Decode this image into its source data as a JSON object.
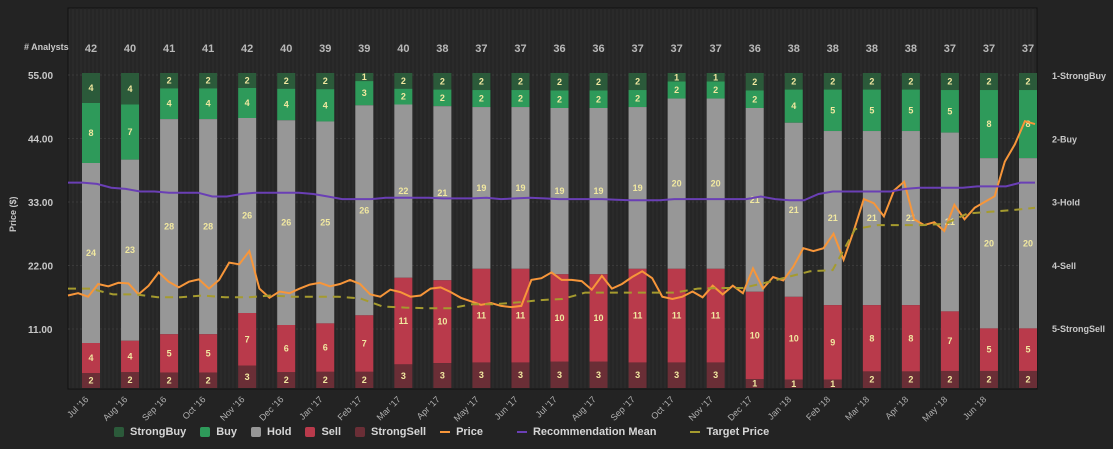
{
  "chart_data": {
    "type": "bar",
    "stacked": true,
    "title": "",
    "count_label": "# Analysts",
    "ylabel": "Price ($)",
    "ylim": [
      0,
      55
    ],
    "yticks": [
      "55.00",
      "44.00",
      "33.00",
      "22.00",
      "11.00"
    ],
    "ytick_values": [
      55,
      44,
      33,
      22,
      11
    ],
    "y2_labels": [
      "1-StrongBuy",
      "2-Buy",
      "3-Hold",
      "4-Sell",
      "5-StrongSell"
    ],
    "y2lim": [
      1,
      5
    ],
    "categories": [
      "Jul '16",
      "Aug '16",
      "Sep '16",
      "Oct '16",
      "Nov '16",
      "Dec '16",
      "Jan '17",
      "Feb '17",
      "Mar '17",
      "Apr '17",
      "May '17",
      "Jun '17",
      "Jul '17",
      "Aug '17",
      "Sep '17",
      "Oct '17",
      "Nov '17",
      "Dec '17",
      "Jan '18",
      "Feb '18",
      "Mar '18",
      "Apr '18",
      "May '18",
      "Jun '18",
      ""
    ],
    "analyst_counts": [
      42,
      40,
      41,
      41,
      42,
      40,
      39,
      39,
      40,
      38,
      37,
      37,
      36,
      36,
      37,
      37,
      37,
      36,
      38,
      38,
      38,
      38,
      37,
      37,
      37
    ],
    "series": [
      {
        "name": "StrongBuy",
        "color": "#2b5a3a",
        "values": [
          4,
          4,
          2,
          2,
          2,
          2,
          2,
          1,
          2,
          2,
          2,
          2,
          2,
          2,
          2,
          1,
          1,
          2,
          2,
          2,
          2,
          2,
          2,
          2,
          2
        ]
      },
      {
        "name": "Buy",
        "color": "#2e9a5a",
        "values": [
          8,
          7,
          4,
          4,
          4,
          4,
          4,
          3,
          2,
          2,
          2,
          2,
          2,
          2,
          2,
          2,
          2,
          2,
          4,
          5,
          5,
          5,
          5,
          8,
          8
        ]
      },
      {
        "name": "Hold",
        "color": "#979797",
        "values": [
          24,
          23,
          28,
          28,
          26,
          26,
          25,
          26,
          22,
          21,
          19,
          19,
          19,
          19,
          19,
          20,
          20,
          21,
          21,
          21,
          21,
          21,
          21,
          20,
          20
        ]
      },
      {
        "name": "Sell",
        "color": "#b93a4b",
        "values": [
          4,
          4,
          5,
          5,
          7,
          6,
          6,
          7,
          11,
          10,
          11,
          11,
          10,
          10,
          11,
          11,
          11,
          10,
          10,
          9,
          8,
          8,
          7,
          5,
          5
        ]
      },
      {
        "name": "StrongSell",
        "color": "#6a2e36",
        "values": [
          2,
          2,
          2,
          2,
          3,
          2,
          2,
          2,
          3,
          3,
          3,
          3,
          3,
          3,
          3,
          3,
          3,
          1,
          1,
          1,
          2,
          2,
          2,
          2,
          2
        ]
      }
    ],
    "lines": [
      {
        "name": "Price",
        "color": "#f7963a",
        "style": "solid",
        "values": [
          16.8,
          17.2,
          16.6,
          18.8,
          18.4,
          19.0,
          18.9,
          17.0,
          18.5,
          20.8,
          19.2,
          18.2,
          19.2,
          19.6,
          18.0,
          19.5,
          22.5,
          22.2,
          24.5,
          18.0,
          16.4,
          17.5,
          17.2,
          18.0,
          18.7,
          19.0,
          18.4,
          18.8,
          19.5,
          18.8,
          17.0,
          16.6,
          17.8,
          17.4,
          16.6,
          16.8,
          18.0,
          18.2,
          17.4,
          16.4,
          15.8,
          15.2,
          15.5,
          15.0,
          14.8,
          15.0,
          19.5,
          19.8,
          20.8,
          19.5,
          19.5,
          19.3,
          17.8,
          20.2,
          18.0,
          18.8,
          20.0,
          21.0,
          19.8,
          16.6,
          16.2,
          16.6,
          17.5,
          16.5,
          18.5,
          17.0,
          18.5,
          17.2,
          21.5,
          18.0,
          20.0,
          19.4,
          21.8,
          25.0,
          24.5,
          25.0,
          27.5,
          23.0,
          28.0,
          33.5,
          32.8,
          30.5,
          35.0,
          36.5,
          30.0,
          29.0,
          29.5,
          28.0,
          32.5,
          30.0,
          32.0,
          33.0,
          34.0,
          40.0,
          43.0,
          47.0,
          46.5
        ]
      },
      {
        "name": "Recommendation Mean",
        "color": "#6a3fb5",
        "style": "solid",
        "values": [
          2.7,
          2.7,
          2.72,
          2.78,
          2.8,
          2.84,
          2.84,
          2.86,
          2.86,
          2.86,
          2.92,
          2.92,
          2.88,
          2.86,
          2.86,
          2.86,
          2.86,
          2.88,
          2.92,
          2.96,
          2.96,
          2.96,
          2.94,
          2.94,
          2.94,
          2.94,
          2.95,
          2.95,
          2.95,
          2.94,
          2.96,
          2.95,
          2.94,
          2.95,
          2.96,
          2.96,
          2.96,
          2.96,
          2.97,
          2.98,
          2.98,
          2.98,
          2.96,
          2.96,
          2.96,
          2.96,
          2.96,
          2.96,
          2.92,
          2.96,
          2.98,
          2.98,
          2.88,
          2.84,
          2.84,
          2.84,
          2.84,
          2.84,
          2.8,
          2.78,
          2.78,
          2.78,
          2.78,
          2.76,
          2.76,
          2.76,
          2.7,
          2.7
        ]
      },
      {
        "name": "Target Price",
        "color": "#a59b2e",
        "style": "dashed",
        "values": [
          18.0,
          18.0,
          17.0,
          17.0,
          16.5,
          16.5,
          16.8,
          16.5,
          16.5,
          16.8,
          16.6,
          16.6,
          16.6,
          16.3,
          14.9,
          14.7,
          14.6,
          14.6,
          15.3,
          15.3,
          15.6,
          16.0,
          16.2,
          17.3,
          17.3,
          17.3,
          17.3,
          17.3,
          18.0,
          18.1,
          18.1,
          19.0,
          20.0,
          21.0,
          21.2,
          28.3,
          29.0,
          29.0,
          29.0,
          29.2,
          31.0,
          31.3,
          31.6,
          32.0
        ]
      }
    ],
    "legend": [
      {
        "label": "StrongBuy",
        "type": "box",
        "color": "#2b5a3a"
      },
      {
        "label": "Buy",
        "type": "box",
        "color": "#2e9a5a"
      },
      {
        "label": "Hold",
        "type": "box",
        "color": "#979797"
      },
      {
        "label": "Sell",
        "type": "box",
        "color": "#b93a4b"
      },
      {
        "label": "StrongSell",
        "type": "box",
        "color": "#6a2e36"
      },
      {
        "label": "Price",
        "type": "line",
        "color": "#f7963a"
      },
      {
        "label": "Recommendation Mean",
        "type": "line",
        "color": "#6a3fb5"
      },
      {
        "label": "Target Price",
        "type": "line",
        "color": "#a59b2e"
      }
    ],
    "legend_position": "bottom",
    "grid": true
  }
}
